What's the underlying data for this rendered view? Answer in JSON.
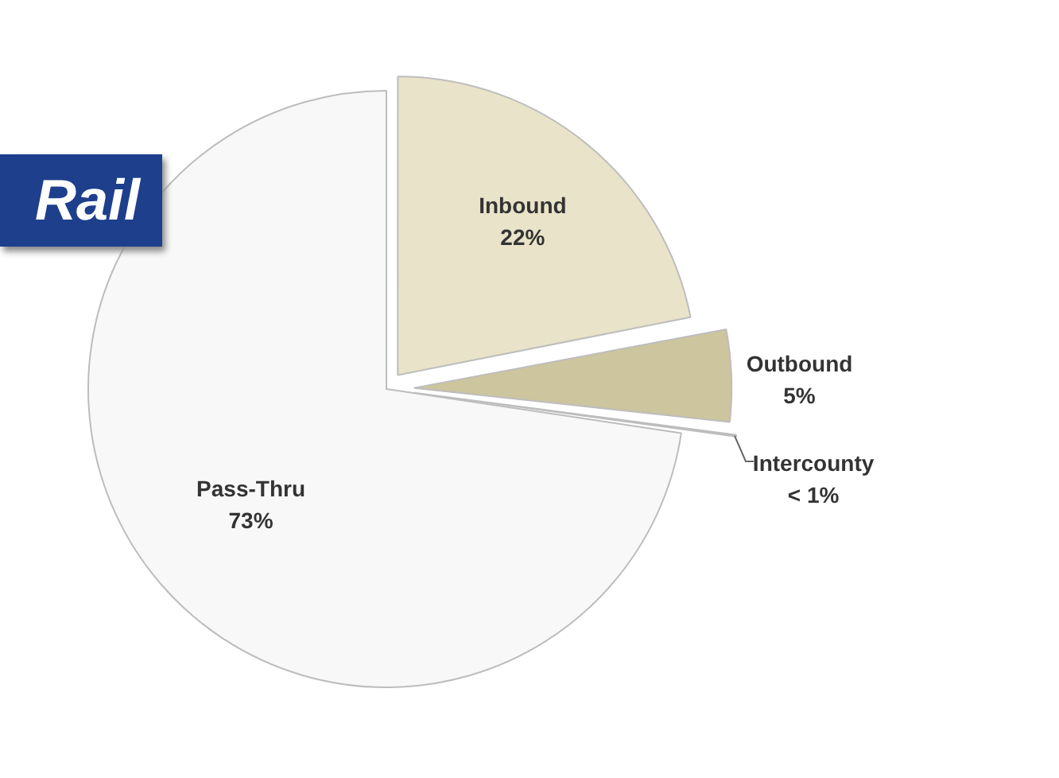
{
  "chart_data": {
    "type": "pie",
    "title": "Rail",
    "legend": false,
    "categories": [
      "Inbound",
      "Outbound",
      "Intercounty",
      "Pass-Thru"
    ],
    "values": [
      22,
      5,
      0.5,
      73
    ],
    "colors": [
      "#e9e3c9",
      "#cdc59d",
      "#a8994f",
      "#f8f8f8"
    ],
    "value_labels": [
      "22%",
      "5%",
      "< 1%",
      "73%"
    ]
  }
}
